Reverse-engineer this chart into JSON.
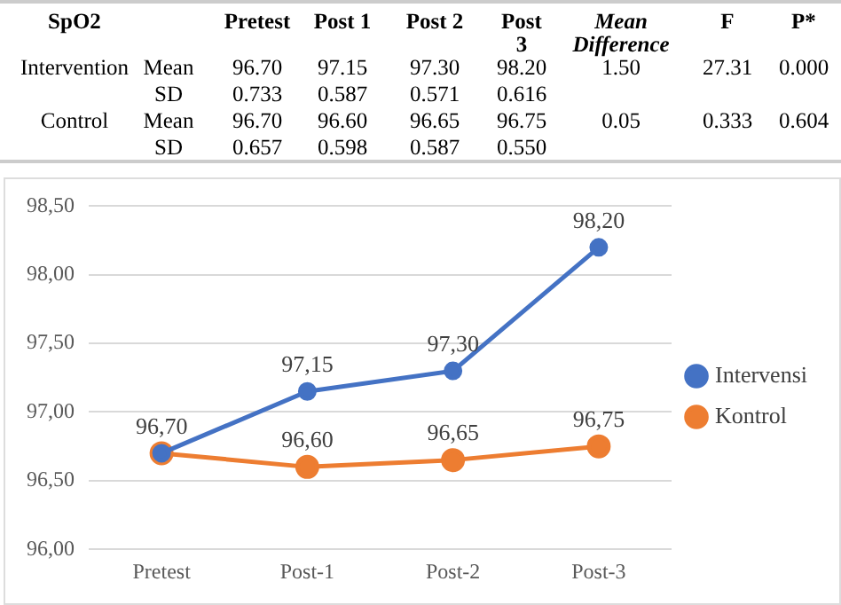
{
  "chart_data": [
    {
      "type": "other",
      "annotations": [
        "SpO2",
        "Pretest",
        "Post 1",
        "Post 2",
        "Post 3",
        "Mean Difference",
        "F",
        "P*",
        "Intervention",
        "Mean",
        "96.70",
        "97.15",
        "97.30",
        "98.20",
        "1.50",
        "27.31",
        "0.000",
        "SD",
        "0.733",
        "0.587",
        "0.571",
        "0.616",
        "Control",
        "Mean",
        "96.70",
        "96.60",
        "96.65",
        "96.75",
        "0.05",
        "0.333",
        "0.604",
        "SD",
        "0.657",
        "0.598",
        "0.587",
        "0.550"
      ]
    },
    {
      "type": "line",
      "categories": [
        "Pretest",
        "Post-1",
        "Post-2",
        "Post-3"
      ],
      "series": [
        {
          "name": "Intervensi",
          "color": "#4472c4",
          "values": [
            96.7,
            97.15,
            97.3,
            98.2
          ],
          "value_labels": [
            "96,70",
            "97,15",
            "97,30",
            "98,20"
          ]
        },
        {
          "name": "Kontrol",
          "color": "#ed7d31",
          "values": [
            96.7,
            96.6,
            96.65,
            96.75
          ],
          "value_labels": [
            null,
            "96,60",
            "96,65",
            "96,75"
          ]
        }
      ],
      "ylim": [
        96,
        98.5
      ],
      "yticks": [
        {
          "value": 96,
          "label": "96,00"
        },
        {
          "value": 96.5,
          "label": "96,50"
        },
        {
          "value": 97,
          "label": "97,00"
        },
        {
          "value": 97.5,
          "label": "97,50"
        },
        {
          "value": 98,
          "label": "98,00"
        },
        {
          "value": 98.5,
          "label": "98,50"
        }
      ],
      "grid": "y",
      "legend": "right",
      "marker": "circle"
    }
  ]
}
